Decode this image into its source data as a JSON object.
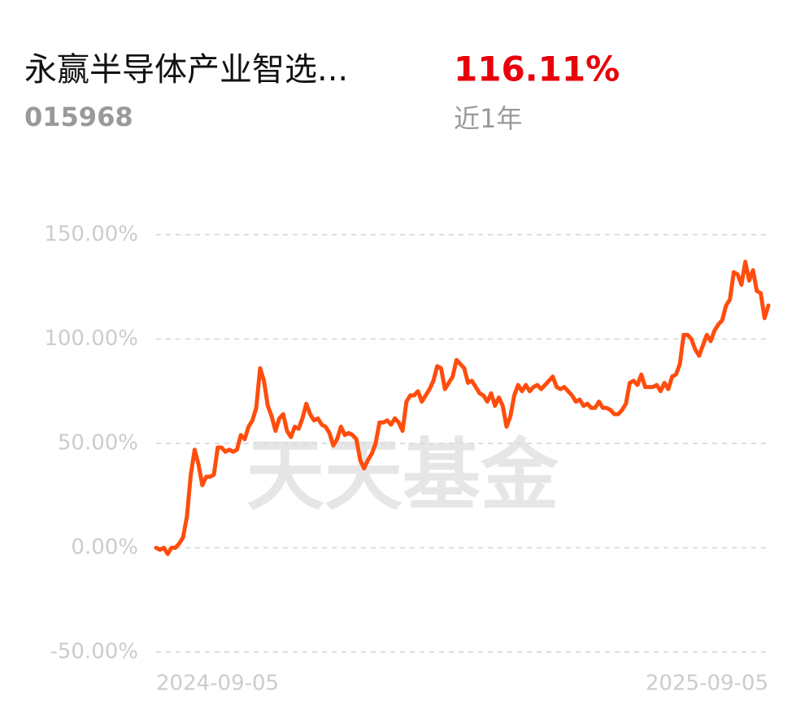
{
  "header": {
    "title": "永赢半导体产业智选...",
    "code": "015968",
    "return": "116.11%",
    "period": "近1年"
  },
  "watermark": "天天基金",
  "chart_data": {
    "type": "line",
    "color": "#ff4d0d",
    "grid": true,
    "ylim": [
      -50,
      150
    ],
    "yticks": [
      {
        "value": -50,
        "label": "-50.00%"
      },
      {
        "value": 0,
        "label": "0.00%"
      },
      {
        "value": 50,
        "label": "50.00%"
      },
      {
        "value": 100,
        "label": "100.00%"
      },
      {
        "value": 150,
        "label": "150.00%"
      }
    ],
    "categories": [
      "2024-09-05",
      null,
      null,
      null,
      null,
      null,
      null,
      null,
      null,
      null,
      null,
      null,
      null,
      null,
      null,
      null,
      null,
      null,
      null,
      null,
      null,
      null,
      null,
      null,
      null,
      null,
      null,
      null,
      null,
      null,
      null,
      null,
      null,
      null,
      null,
      null,
      null,
      null,
      null,
      null,
      null,
      null,
      null,
      null,
      null,
      null,
      null,
      null,
      null,
      null,
      null,
      null,
      null,
      null,
      null,
      null,
      null,
      null,
      null,
      null,
      null,
      null,
      null,
      null,
      null,
      null,
      null,
      null,
      null,
      null,
      null,
      null,
      null,
      null,
      null,
      null,
      null,
      null,
      null,
      null,
      null,
      null,
      null,
      null,
      null,
      null,
      null,
      null,
      null,
      null,
      null,
      null,
      null,
      null,
      null,
      null,
      null,
      null,
      null,
      null,
      null,
      null,
      null,
      null,
      null,
      null,
      null,
      null,
      null,
      null,
      null,
      null,
      null,
      null,
      null,
      null,
      null,
      null,
      null,
      null,
      null,
      null,
      null,
      null,
      null,
      null,
      null,
      null,
      null,
      null,
      null,
      null,
      null,
      null,
      null,
      null,
      null,
      null,
      null,
      null,
      null,
      null,
      null,
      null,
      null,
      null,
      null,
      null,
      null,
      null,
      null,
      null,
      null,
      null,
      null,
      null,
      null,
      null,
      null,
      "2025-09-05"
    ],
    "values": [
      0,
      -1,
      0,
      -3,
      0,
      0,
      2,
      5,
      15,
      35,
      47,
      40,
      30,
      34,
      34,
      35,
      48,
      48,
      46,
      47,
      46,
      47,
      54,
      52,
      58,
      61,
      67,
      86,
      80,
      68,
      63,
      56,
      62,
      64,
      56,
      53,
      58,
      57,
      62,
      69,
      64,
      61,
      62,
      59,
      58,
      55,
      49,
      52,
      58,
      54,
      55,
      54,
      52,
      42,
      38,
      42,
      45,
      50,
      60,
      60,
      61,
      59,
      62,
      60,
      56,
      70,
      73,
      73,
      75,
      70,
      73,
      76,
      80,
      87,
      86,
      76,
      79,
      82,
      90,
      88,
      86,
      79,
      80,
      77,
      74,
      73,
      70,
      74,
      68,
      72,
      68,
      58,
      63,
      73,
      78,
      75,
      78,
      75,
      77,
      78,
      76,
      78,
      80,
      82,
      77,
      76,
      77,
      75,
      73,
      70,
      71,
      68,
      69,
      67,
      67,
      70,
      67,
      67,
      66,
      64,
      64,
      66,
      69,
      79,
      80,
      78,
      83,
      77,
      77,
      77,
      78,
      75,
      79,
      76,
      82,
      83,
      88,
      102,
      102,
      100,
      95,
      92,
      97,
      102,
      99,
      104,
      107,
      109,
      116,
      119,
      132,
      131,
      126,
      137,
      128,
      133,
      123,
      122,
      110,
      116.11
    ]
  }
}
